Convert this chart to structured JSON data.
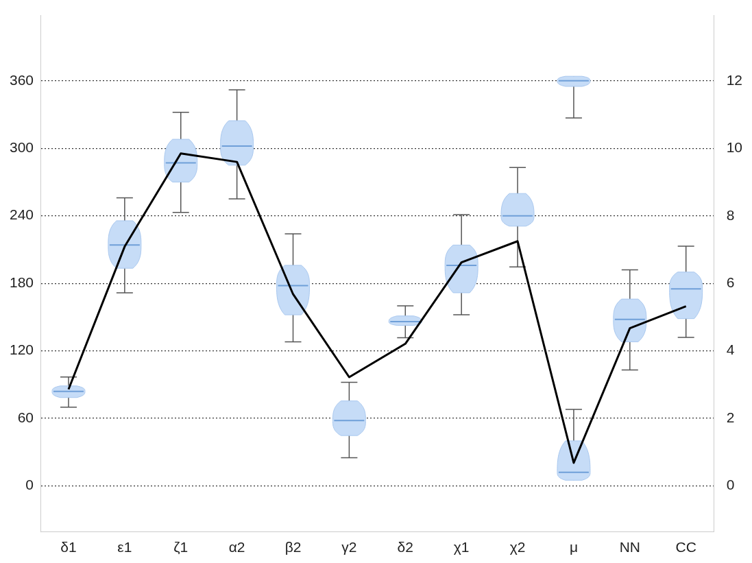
{
  "chart_data": {
    "type": "box",
    "categories": [
      "δ1",
      "ε1",
      "ζ1",
      "α2",
      "β2",
      "γ2",
      "δ2",
      "χ1",
      "χ2",
      "μ",
      "NN",
      "CC"
    ],
    "ylim": [
      -41,
      418
    ],
    "yticks": [
      0,
      60,
      120,
      180,
      240,
      300,
      360
    ],
    "y2lim": [
      -1.37,
      13.94
    ],
    "y2ticks": [
      0,
      2,
      4,
      6,
      8,
      10,
      12
    ],
    "grid": "y",
    "marker": "none",
    "series": [
      {
        "type": "box",
        "color": "#c6dcf7",
        "boxes": [
          {
            "low": 70,
            "q1": 78.5,
            "median": 84,
            "q3": 88.8,
            "high": 96.7
          },
          {
            "low": 171.6,
            "q1": 193.4,
            "median": 214,
            "q3": 235.6,
            "high": 256
          },
          {
            "low": 243,
            "q1": 270,
            "median": 287,
            "q3": 308,
            "high": 332
          },
          {
            "low": 255,
            "q1": 285,
            "median": 302,
            "q3": 324.5,
            "high": 352
          },
          {
            "low": 128,
            "q1": 152,
            "median": 178,
            "q3": 196,
            "high": 224
          },
          {
            "low": 25,
            "q1": 44.7,
            "median": 58,
            "q3": 75.5,
            "high": 92
          },
          {
            "low": 131.7,
            "q1": 142.6,
            "median": 146,
            "q3": 151,
            "high": 160
          },
          {
            "low": 152,
            "q1": 171.6,
            "median": 196,
            "q3": 214,
            "high": 241
          },
          {
            "low": 194.6,
            "q1": 230.8,
            "median": 240,
            "q3": 259.8,
            "high": 283
          },
          {
            "low": 5,
            "q1": 5,
            "median": 12,
            "q3": 40,
            "high": 68
          },
          {
            "low": 103,
            "q1": 128,
            "median": 148,
            "q3": 166,
            "high": 192
          },
          {
            "low": 132,
            "q1": 148.6,
            "median": 175,
            "q3": 190,
            "high": 213
          }
        ]
      },
      {
        "type": "box",
        "color": "#c6dcf7",
        "boxes": [
          null,
          null,
          null,
          null,
          null,
          null,
          null,
          null,
          null,
          {
            "low": 327,
            "q1": 355,
            "median": 360,
            "q3": 364,
            "high": 364
          },
          null,
          null
        ]
      },
      {
        "type": "line",
        "axis": "y2",
        "color": "#000000",
        "values": [
          2.86,
          7.09,
          9.85,
          9.6,
          5.68,
          3.22,
          4.21,
          6.62,
          7.25,
          0.68,
          4.67,
          5.32
        ]
      }
    ]
  }
}
